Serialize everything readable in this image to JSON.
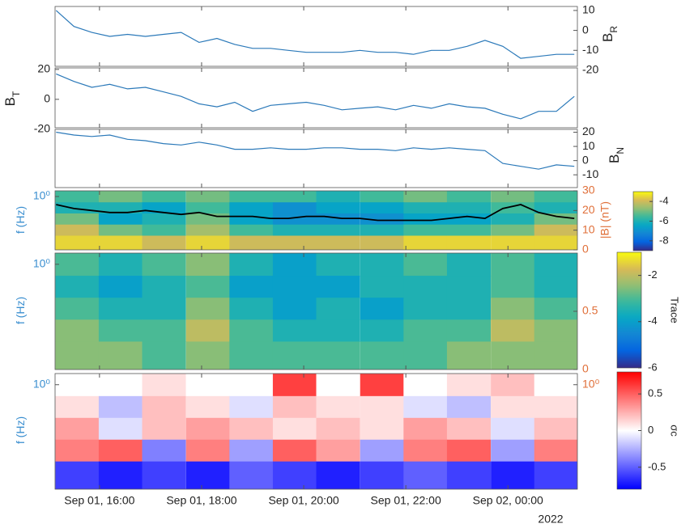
{
  "chart_data": [
    {
      "type": "line",
      "ylabel": "B",
      "ylabel_sub": "R",
      "color": "#2b79b9",
      "x": [
        15.15,
        15.5,
        15.85,
        16.2,
        16.55,
        16.9,
        17.25,
        17.6,
        17.95,
        18.3,
        18.65,
        19.0,
        19.35,
        19.7,
        20.05,
        20.4,
        20.75,
        21.1,
        21.45,
        21.8,
        22.15,
        22.5,
        22.85,
        23.2,
        23.55,
        23.9,
        24.25,
        24.6,
        24.95,
        25.3
      ],
      "values": [
        10,
        2,
        -1,
        -3,
        -2,
        -3,
        -2,
        -1,
        -6,
        -4,
        -7,
        -9,
        -9,
        -10,
        -11,
        -11,
        -11,
        -10,
        -11,
        -11,
        -12,
        -10,
        -10,
        -8,
        -5,
        -8,
        -14,
        -13,
        -12,
        -12
      ],
      "ylim": [
        -18,
        12
      ],
      "yticks": [
        10,
        0,
        -10,
        -20
      ]
    },
    {
      "type": "line",
      "ylabel": "B",
      "ylabel_sub": "T",
      "color": "#2b79b9",
      "x": [
        15.15,
        15.5,
        15.85,
        16.2,
        16.55,
        16.9,
        17.25,
        17.6,
        17.95,
        18.3,
        18.65,
        19.0,
        19.35,
        19.7,
        20.05,
        20.4,
        20.75,
        21.1,
        21.45,
        21.8,
        22.15,
        22.5,
        22.85,
        23.2,
        23.55,
        23.9,
        24.25,
        24.6,
        24.95,
        25.3
      ],
      "values": [
        17,
        12,
        8,
        10,
        7,
        8,
        5,
        2,
        -3,
        -5,
        -2,
        -8,
        -4,
        -3,
        -2,
        -4,
        -7,
        -6,
        -5,
        -7,
        -4,
        -6,
        -3,
        -5,
        -6,
        -10,
        -13,
        -8,
        -8,
        2
      ],
      "ylim": [
        -19,
        21
      ],
      "yticks": [
        20,
        0,
        -20
      ]
    },
    {
      "type": "line",
      "ylabel": "B",
      "ylabel_sub": "N",
      "color": "#2b79b9",
      "x": [
        15.15,
        15.5,
        15.85,
        16.2,
        16.55,
        16.9,
        17.25,
        17.6,
        17.95,
        18.3,
        18.65,
        19.0,
        19.35,
        19.7,
        20.05,
        20.4,
        20.75,
        21.1,
        21.45,
        21.8,
        22.15,
        22.5,
        22.85,
        23.2,
        23.55,
        23.9,
        24.25,
        24.6,
        24.95,
        25.3
      ],
      "values": [
        20,
        18,
        17,
        18,
        15,
        14,
        12,
        11,
        13,
        11,
        8,
        8,
        9,
        8,
        8,
        9,
        9,
        8,
        8,
        7,
        9,
        8,
        9,
        8,
        7,
        -2,
        -4,
        -6,
        -3,
        -4
      ],
      "ylim": [
        -19,
        22
      ],
      "yticks": [
        20,
        10,
        0,
        -10
      ]
    },
    {
      "type": "heatmap",
      "ylabel": "f (Hz)",
      "ylog": true,
      "ylim": [
        0.004,
        1.8
      ],
      "yticks": [
        {
          "value": 1,
          "label": "10⁰"
        }
      ],
      "x": [
        15.56,
        16.41,
        17.26,
        18.12,
        18.97,
        19.82,
        20.67,
        21.53,
        22.38,
        23.23,
        24.09,
        24.94
      ],
      "y": [
        1,
        0.3,
        0.1,
        0.03,
        0.01
      ],
      "z": [
        [
          -5.5,
          -5,
          -5.5,
          -5,
          -5.5,
          -5.5,
          -6,
          -5.5,
          -5,
          -5.5,
          -5,
          -5.5
        ],
        [
          -6,
          -6,
          -6.5,
          -5.5,
          -6.5,
          -7,
          -6.5,
          -6.5,
          -6,
          -6,
          -5.5,
          -6
        ],
        [
          -5,
          -6.5,
          -6,
          -5,
          -6.5,
          -7,
          -7,
          -7,
          -6.5,
          -6.5,
          -6,
          -5
        ],
        [
          -4,
          -5,
          -5.5,
          -4.5,
          -5.5,
          -6,
          -6,
          -6,
          -5.5,
          -5.5,
          -5,
          -4
        ],
        [
          -3.5,
          -3.5,
          -4,
          -3.5,
          -4,
          -4,
          -4,
          -4,
          -3.5,
          -3.5,
          -3.5,
          -3.5
        ]
      ],
      "colormap": "parula",
      "clim": [
        -9,
        -3
      ],
      "cticks": [
        -4,
        -6,
        -8
      ],
      "y2label": "|B| (nT)",
      "y2lim": [
        0,
        30
      ],
      "y2ticks": [
        0,
        10,
        20,
        30
      ],
      "series": [
        {
          "color": "#000000",
          "axis": "y2",
          "x": [
            15.15,
            15.5,
            15.85,
            16.2,
            16.55,
            16.9,
            17.25,
            17.6,
            17.95,
            18.3,
            18.65,
            19.0,
            19.35,
            19.7,
            20.05,
            20.4,
            20.75,
            21.1,
            21.45,
            21.8,
            22.15,
            22.5,
            22.85,
            23.2,
            23.55,
            23.9,
            24.25,
            24.6,
            24.95,
            25.3
          ],
          "values": [
            23,
            21,
            20,
            19,
            19,
            20,
            19,
            18,
            19,
            17,
            17,
            17,
            16,
            16,
            17,
            17,
            16,
            16,
            15,
            15,
            15,
            15,
            16,
            17,
            16,
            21,
            23,
            19,
            17,
            16
          ]
        }
      ]
    },
    {
      "type": "heatmap",
      "ylabel": "f (Hz)",
      "ylog": true,
      "ylim": [
        0.004,
        1.8
      ],
      "yticks": [
        {
          "value": 1,
          "label": "10⁰"
        }
      ],
      "x": [
        15.56,
        16.41,
        17.26,
        18.12,
        18.97,
        19.82,
        20.67,
        21.53,
        22.38,
        23.23,
        24.09,
        24.94
      ],
      "y": [
        1,
        0.3,
        0.1,
        0.03,
        0.01
      ],
      "z": [
        [
          -3,
          -3.5,
          -3,
          -2.5,
          -3.5,
          -4,
          -3.5,
          -3.5,
          -3,
          -3.5,
          -3,
          -3.5
        ],
        [
          -3.5,
          -4,
          -3.5,
          -3,
          -4,
          -4,
          -4,
          -3.5,
          -3.5,
          -3.5,
          -3,
          -3.5
        ],
        [
          -3,
          -3.5,
          -3.5,
          -2.5,
          -3.5,
          -4,
          -3.5,
          -4,
          -3.5,
          -3.5,
          -2.5,
          -3
        ],
        [
          -2.5,
          -3,
          -3,
          -2,
          -3,
          -3.5,
          -3.5,
          -3.5,
          -3,
          -3,
          -2,
          -2.5
        ],
        [
          -2.5,
          -2.5,
          -3,
          -2.5,
          -3,
          -3,
          -3,
          -3,
          -3,
          -2.5,
          -2.5,
          -2.5
        ]
      ],
      "colormap": "parula",
      "clim": [
        -6,
        -1
      ],
      "cticks": [
        -2,
        -4,
        -6
      ],
      "clabel": "Trace",
      "y2lim": [
        0,
        1
      ],
      "y2ticks": [
        0,
        0.5
      ]
    },
    {
      "type": "heatmap",
      "ylabel": "f (Hz)",
      "ylog": true,
      "ylim": [
        0.004,
        1.8
      ],
      "yticks": [
        {
          "value": 1,
          "label": "10⁰"
        }
      ],
      "x": [
        15.56,
        16.41,
        17.26,
        18.12,
        18.97,
        19.82,
        20.67,
        21.53,
        22.38,
        23.23,
        24.09,
        24.94
      ],
      "y": [
        1,
        0.3,
        0.1,
        0.03,
        0.01
      ],
      "z": [
        [
          0,
          0,
          0.1,
          0,
          0,
          0.6,
          0,
          0.6,
          0,
          0.1,
          0.2,
          0
        ],
        [
          0.1,
          -0.2,
          0.2,
          0.1,
          -0.1,
          0.2,
          0.1,
          0.1,
          -0.1,
          -0.2,
          0.1,
          0.1
        ],
        [
          0.3,
          -0.1,
          0.2,
          0.3,
          0.2,
          0.1,
          0.2,
          0.1,
          0.3,
          0.2,
          -0.1,
          0.2
        ],
        [
          0.4,
          0.5,
          -0.4,
          0.4,
          -0.3,
          0.5,
          0.3,
          -0.3,
          0.4,
          0.5,
          -0.3,
          0.4
        ],
        [
          -0.6,
          -0.7,
          -0.6,
          -0.7,
          -0.5,
          -0.6,
          -0.7,
          -0.6,
          -0.5,
          -0.6,
          -0.7,
          -0.6
        ]
      ],
      "colormap": "bwr",
      "clim": [
        -0.8,
        0.8
      ],
      "cticks": [
        0.5,
        0,
        -0.5
      ],
      "clabel": "σc",
      "y2log": true,
      "y2lim": [
        0.004,
        1.8
      ],
      "y2ticks": [
        {
          "value": 1,
          "label": "10⁰"
        }
      ],
      "xlim": [
        15.13,
        25.36
      ],
      "xticks": [
        {
          "value": 16,
          "label": "Sep 01, 16:00"
        },
        {
          "value": 18,
          "label": "Sep 01, 18:00"
        },
        {
          "value": 20,
          "label": "Sep 01, 20:00"
        },
        {
          "value": 22,
          "label": "Sep 01, 22:00"
        },
        {
          "value": 24,
          "label": "Sep 02, 00:00"
        }
      ],
      "xlabel": "2022"
    }
  ]
}
